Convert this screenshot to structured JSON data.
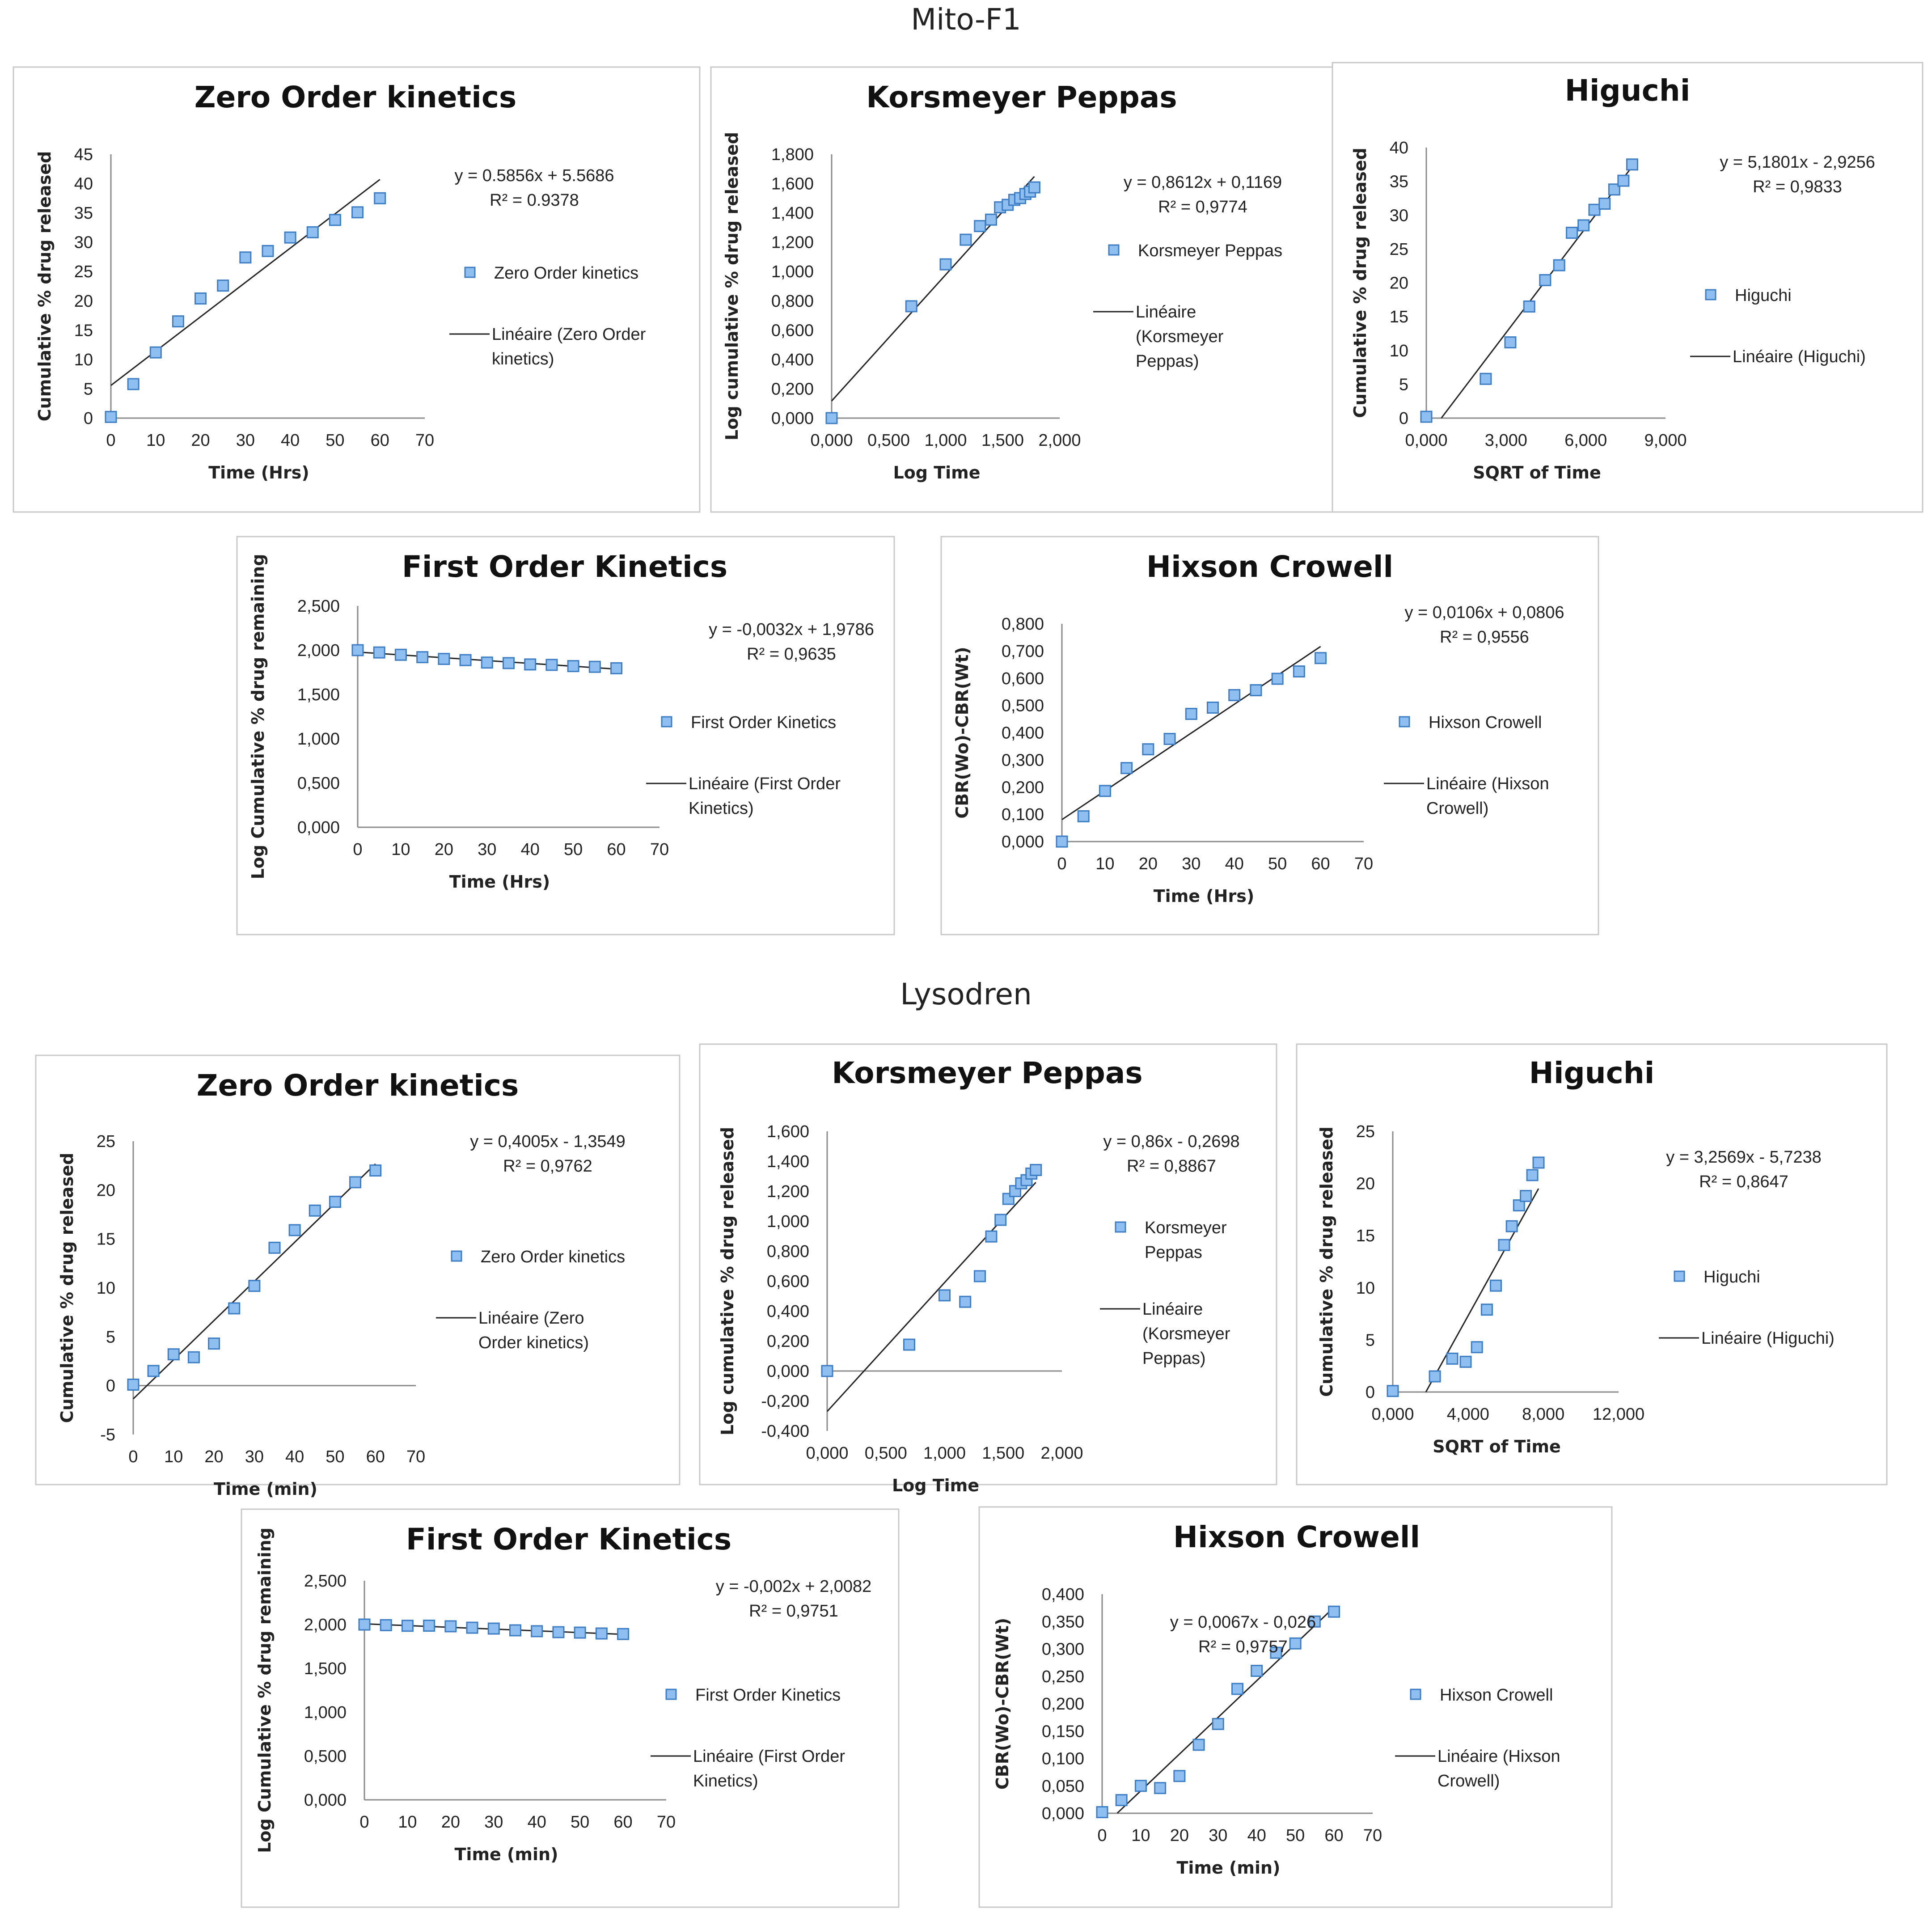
{
  "groups": [
    {
      "title": "Mito-F1"
    },
    {
      "title": "Lysodren"
    }
  ],
  "chart_data": [
    {
      "type": "scatter",
      "group": "Mito-F1",
      "title": "Zero Order kinetics",
      "xlabel": "Time (Hrs)",
      "ylabel": "Cumulative % drug released",
      "xlim": [
        0,
        70
      ],
      "ylim": [
        0,
        45
      ],
      "xticks": [
        "0",
        "10",
        "20",
        "30",
        "40",
        "50",
        "60",
        "70"
      ],
      "yticks": [
        "0",
        "5",
        "10",
        "15",
        "20",
        "25",
        "30",
        "35",
        "40",
        "45"
      ],
      "x": [
        0,
        5,
        10,
        15,
        20,
        25,
        30,
        35,
        40,
        45,
        50,
        55,
        60
      ],
      "y": [
        0.2,
        5.8,
        11.2,
        16.5,
        20.4,
        22.6,
        27.4,
        28.5,
        30.8,
        31.7,
        33.8,
        35.1,
        37.5
      ],
      "trend": {
        "slope": 0.5856,
        "intercept": 5.5686,
        "x0": 0,
        "x1": 60
      },
      "equation": "y = 0.5856x + 5.5686",
      "r2": "R² = 0.9378",
      "legend_series": "Zero Order kinetics",
      "legend_trend": [
        "Linéaire (Zero Order",
        "kinetics)"
      ]
    },
    {
      "type": "scatter",
      "group": "Mito-F1",
      "title": "Korsmeyer Peppas",
      "xlabel": "Log Time",
      "ylabel": "Log cumulative % drug released",
      "xlim": [
        0,
        2
      ],
      "ylim": [
        0,
        1.8
      ],
      "xticks": [
        "0,000",
        "0,500",
        "1,000",
        "1,500",
        "2,000"
      ],
      "yticks": [
        "0,000",
        "0,200",
        "0,400",
        "0,600",
        "0,800",
        "1,000",
        "1,200",
        "1,400",
        "1,600",
        "1,800"
      ],
      "x": [
        0,
        0.699,
        1.0,
        1.176,
        1.301,
        1.398,
        1.477,
        1.544,
        1.602,
        1.653,
        1.699,
        1.74,
        1.778
      ],
      "y": [
        0,
        0.763,
        1.049,
        1.217,
        1.31,
        1.354,
        1.438,
        1.455,
        1.489,
        1.501,
        1.529,
        1.545,
        1.574
      ],
      "trend": {
        "slope": 0.8612,
        "intercept": 0.1169,
        "x0": 0,
        "x1": 1.778
      },
      "equation": "y = 0,8612x + 0,1169",
      "r2": "R² = 0,9774",
      "legend_series": "Korsmeyer Peppas",
      "legend_trend": [
        "Linéaire",
        "(Korsmeyer",
        "Peppas)"
      ]
    },
    {
      "type": "scatter",
      "group": "Mito-F1",
      "title": "Higuchi",
      "xlabel": "SQRT of Time",
      "ylabel": "Cumulative % drug released",
      "xlim": [
        0,
        9
      ],
      "ylim": [
        0,
        40
      ],
      "xticks": [
        "0,000",
        "3,000",
        "6,000",
        "9,000"
      ],
      "yticks": [
        "0",
        "5",
        "10",
        "15",
        "20",
        "25",
        "30",
        "35",
        "40"
      ],
      "x": [
        0,
        2.236,
        3.162,
        3.873,
        4.472,
        5.0,
        5.477,
        5.916,
        6.325,
        6.708,
        7.071,
        7.416,
        7.746
      ],
      "y": [
        0.2,
        5.8,
        11.2,
        16.5,
        20.4,
        22.6,
        27.4,
        28.5,
        30.8,
        31.7,
        33.8,
        35.1,
        37.5
      ],
      "trend": {
        "slope": 5.1801,
        "intercept": -2.9256,
        "x0": 0.565,
        "x1": 7.746
      },
      "equation": "y = 5,1801x - 2,9256",
      "r2": "R² = 0,9833",
      "legend_series": "Higuchi",
      "legend_trend": [
        "Linéaire (Higuchi)"
      ]
    },
    {
      "type": "scatter",
      "group": "Mito-F1",
      "title": "First Order Kinetics",
      "xlabel": "Time (Hrs)",
      "ylabel": "Log Cumulative % drug remaining",
      "xlim": [
        0,
        70
      ],
      "ylim": [
        0,
        2.5
      ],
      "xticks": [
        "0",
        "10",
        "20",
        "30",
        "40",
        "50",
        "60",
        "70"
      ],
      "yticks": [
        "0,000",
        "0,500",
        "1,000",
        "1,500",
        "2,000",
        "2,500"
      ],
      "x": [
        0,
        5,
        10,
        15,
        20,
        25,
        30,
        35,
        40,
        45,
        50,
        55,
        60
      ],
      "y": [
        2.0,
        1.974,
        1.948,
        1.921,
        1.901,
        1.888,
        1.86,
        1.854,
        1.839,
        1.834,
        1.82,
        1.812,
        1.796
      ],
      "trend": {
        "slope": -0.0032,
        "intercept": 1.9786,
        "x0": 0,
        "x1": 60
      },
      "equation": "y = -0,0032x + 1,9786",
      "r2": "R² = 0,9635",
      "legend_series": "First Order Kinetics",
      "legend_trend": [
        "Linéaire (First Order",
        "Kinetics)"
      ]
    },
    {
      "type": "scatter",
      "group": "Mito-F1",
      "title": "Hixson Crowell",
      "xlabel": "Time (Hrs)",
      "ylabel": "CBR(Wo)-CBR(Wt)",
      "xlim": [
        0,
        70
      ],
      "ylim": [
        0,
        0.8
      ],
      "xticks": [
        "0",
        "10",
        "20",
        "30",
        "40",
        "50",
        "60",
        "70"
      ],
      "yticks": [
        "0,000",
        "0,100",
        "0,200",
        "0,300",
        "0,400",
        "0,500",
        "0,600",
        "0,700",
        "0,800"
      ],
      "x": [
        0,
        5,
        10,
        15,
        20,
        25,
        30,
        35,
        40,
        45,
        50,
        55,
        60
      ],
      "y": [
        0.0,
        0.093,
        0.186,
        0.27,
        0.339,
        0.377,
        0.469,
        0.492,
        0.538,
        0.556,
        0.598,
        0.625,
        0.674
      ],
      "trend": {
        "slope": 0.0106,
        "intercept": 0.0806,
        "x0": 0,
        "x1": 60
      },
      "equation": "y = 0,0106x + 0,0806",
      "r2": "R² = 0,9556",
      "legend_series": "Hixson Crowell",
      "legend_trend": [
        "Linéaire (Hixson",
        "Crowell)"
      ]
    },
    {
      "type": "scatter",
      "group": "Lysodren",
      "title": "Zero Order kinetics",
      "xlabel": "Time (min)",
      "ylabel": "Cumulative % drug released",
      "xlim": [
        0,
        70
      ],
      "ylim": [
        -5,
        25
      ],
      "xticks": [
        "0",
        "10",
        "20",
        "30",
        "40",
        "50",
        "60",
        "70"
      ],
      "yticks": [
        "-5",
        "0",
        "5",
        "10",
        "15",
        "20",
        "25"
      ],
      "x": [
        0,
        5,
        10,
        15,
        20,
        25,
        30,
        35,
        40,
        45,
        50,
        55,
        60
      ],
      "y": [
        0.1,
        1.5,
        3.2,
        2.9,
        4.3,
        7.9,
        10.2,
        14.1,
        15.9,
        17.9,
        18.8,
        20.8,
        22.0
      ],
      "trend": {
        "slope": 0.4005,
        "intercept": -1.3549,
        "x0": 0,
        "x1": 60
      },
      "equation": "y = 0,4005x - 1,3549",
      "r2": "R² = 0,9762",
      "legend_series": "Zero Order kinetics",
      "legend_trend": [
        "Linéaire (Zero",
        "Order kinetics)"
      ]
    },
    {
      "type": "scatter",
      "group": "Lysodren",
      "title": "Korsmeyer Peppas",
      "xlabel": "Log Time",
      "ylabel": "Log cumulative % drug released",
      "xlim": [
        0,
        2
      ],
      "ylim": [
        -0.4,
        1.6
      ],
      "xticks": [
        "0,000",
        "0,500",
        "1,000",
        "1,500",
        "2,000"
      ],
      "yticks": [
        "-0,400",
        "-0,200",
        "0,000",
        "0,200",
        "0,400",
        "0,600",
        "0,800",
        "1,000",
        "1,200",
        "1,400",
        "1,600"
      ],
      "x": [
        0,
        0.699,
        1.0,
        1.176,
        1.301,
        1.398,
        1.477,
        1.544,
        1.602,
        1.653,
        1.699,
        1.74,
        1.778
      ],
      "y": [
        0,
        0.176,
        0.505,
        0.462,
        0.633,
        0.898,
        1.009,
        1.149,
        1.201,
        1.253,
        1.274,
        1.318,
        1.342
      ],
      "trend": {
        "slope": 0.86,
        "intercept": -0.2698,
        "x0": 0,
        "x1": 1.778
      },
      "equation": "y = 0,86x - 0,2698",
      "r2": "R² = 0,8867",
      "legend_series": [
        "Korsmeyer",
        "Peppas"
      ],
      "legend_trend": [
        "Linéaire",
        "(Korsmeyer",
        "Peppas)"
      ]
    },
    {
      "type": "scatter",
      "group": "Lysodren",
      "title": "Higuchi",
      "xlabel": "SQRT of Time",
      "ylabel": "Cumulative % drug released",
      "xlim": [
        0,
        12
      ],
      "ylim": [
        0,
        25
      ],
      "xticks": [
        "0,000",
        "4,000",
        "8,000",
        "12,000"
      ],
      "yticks": [
        "0",
        "5",
        "10",
        "15",
        "20",
        "25"
      ],
      "x": [
        0,
        2.236,
        3.162,
        3.873,
        4.472,
        5.0,
        5.477,
        5.916,
        6.325,
        6.708,
        7.071,
        7.416,
        7.746
      ],
      "y": [
        0.1,
        1.5,
        3.2,
        2.9,
        4.3,
        7.9,
        10.2,
        14.1,
        15.9,
        17.9,
        18.8,
        20.8,
        22.0
      ],
      "trend": {
        "slope": 3.2569,
        "intercept": -5.7238,
        "x0": 1.757,
        "x1": 7.746
      },
      "equation": "y = 3,2569x - 5,7238",
      "r2": "R² = 0,8647",
      "legend_series": "Higuchi",
      "legend_trend": [
        "Linéaire (Higuchi)"
      ]
    },
    {
      "type": "scatter",
      "group": "Lysodren",
      "title": "First Order Kinetics",
      "xlabel": "Time (min)",
      "ylabel": "Log Cumulative % drug remaining",
      "xlim": [
        0,
        70
      ],
      "ylim": [
        0,
        2.5
      ],
      "xticks": [
        "0",
        "10",
        "20",
        "30",
        "40",
        "50",
        "60",
        "70"
      ],
      "yticks": [
        "0,000",
        "0,500",
        "1,000",
        "1,500",
        "2,000",
        "2,500"
      ],
      "x": [
        0,
        5,
        10,
        15,
        20,
        25,
        30,
        35,
        40,
        45,
        50,
        55,
        60
      ],
      "y": [
        2.0,
        1.993,
        1.986,
        1.987,
        1.98,
        1.964,
        1.954,
        1.934,
        1.924,
        1.913,
        1.908,
        1.898,
        1.892
      ],
      "trend": {
        "slope": -0.002,
        "intercept": 2.0082,
        "x0": 0,
        "x1": 60
      },
      "equation": "y = -0,002x + 2,0082",
      "r2": "R² = 0,9751",
      "legend_series": "First Order Kinetics",
      "legend_trend": [
        "Linéaire (First Order",
        "Kinetics)"
      ]
    },
    {
      "type": "scatter",
      "group": "Lysodren",
      "title": "Hixson Crowell",
      "xlabel": "Time (min)",
      "ylabel": "CBR(Wo)-CBR(Wt)",
      "xlim": [
        0,
        70
      ],
      "ylim": [
        0,
        0.4
      ],
      "xticks": [
        "0",
        "10",
        "20",
        "30",
        "40",
        "50",
        "60",
        "70"
      ],
      "yticks": [
        "0,000",
        "0,050",
        "0,100",
        "0,150",
        "0,200",
        "0,250",
        "0,300",
        "0,350",
        "0,400"
      ],
      "x": [
        0,
        5,
        10,
        15,
        20,
        25,
        30,
        35,
        40,
        45,
        50,
        55,
        60
      ],
      "y": [
        0.002,
        0.024,
        0.05,
        0.046,
        0.068,
        0.125,
        0.163,
        0.227,
        0.26,
        0.293,
        0.31,
        0.35,
        0.368
      ],
      "trend": {
        "slope": 0.0067,
        "intercept": -0.026,
        "x0": 3.9,
        "x1": 60
      },
      "equation": "y = 0,0067x - 0,026",
      "r2": "R² = 0,9757",
      "legend_series": "Hixson Crowell",
      "legend_trend": [
        "Linéaire (Hixson",
        "Crowell)"
      ]
    }
  ]
}
